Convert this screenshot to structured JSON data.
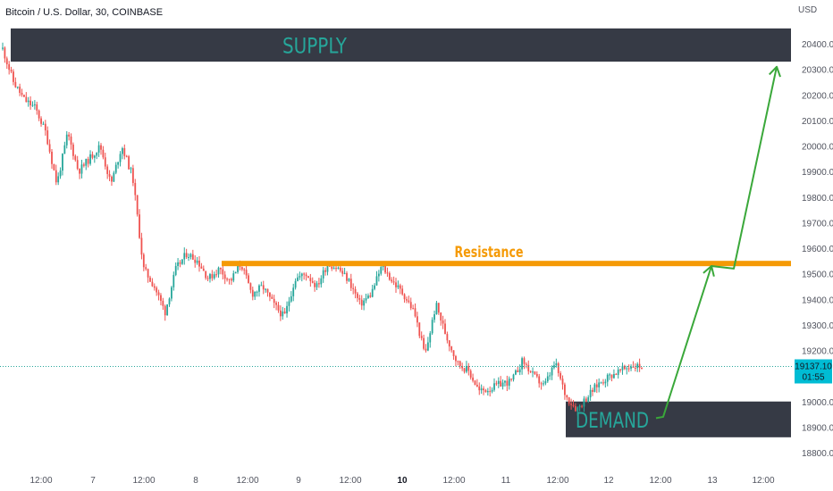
{
  "header": {
    "symbol": "Bitcoin / U.S. Dollar, 30, COINBASE",
    "currency": "USD"
  },
  "colors": {
    "up": "#26a69a",
    "down": "#ef5350",
    "zone": "#363a45",
    "zone_text": "#26a69a",
    "resistance": "#f59a06",
    "arrow": "#3aa83a",
    "price_tag": "#00bcd4"
  },
  "chart_data": {
    "type": "candlestick",
    "title": "Bitcoin / U.S. Dollar, 30, COINBASE",
    "y_axis": {
      "unit": "USD",
      "ylim": [
        18750,
        20500
      ],
      "ticks": [
        "20400.00",
        "20300.00",
        "20200.00",
        "20100.00",
        "20000.00",
        "19900.00",
        "19800.00",
        "19700.00",
        "19600.00",
        "19500.00",
        "19400.00",
        "19300.00",
        "19200.00",
        "19000.00",
        "18900.00",
        "18800.00"
      ]
    },
    "x_axis": {
      "ticks": [
        {
          "label": "12:00",
          "bold": false
        },
        {
          "label": "7",
          "bold": false
        },
        {
          "label": "12:00",
          "bold": false
        },
        {
          "label": "8",
          "bold": false
        },
        {
          "label": "12:00",
          "bold": false
        },
        {
          "label": "9",
          "bold": false
        },
        {
          "label": "12:00",
          "bold": false
        },
        {
          "label": "10",
          "bold": true
        },
        {
          "label": "12:00",
          "bold": false
        },
        {
          "label": "11",
          "bold": false
        },
        {
          "label": "12:00",
          "bold": false
        },
        {
          "label": "12",
          "bold": false
        },
        {
          "label": "12:00",
          "bold": false
        },
        {
          "label": "13",
          "bold": false
        },
        {
          "label": "12:00",
          "bold": false
        }
      ]
    },
    "price_path": [
      20380,
      20250,
      20180,
      20150,
      20050,
      19850,
      20050,
      19900,
      19950,
      20000,
      19850,
      20000,
      19880,
      19520,
      19450,
      19350,
      19520,
      19580,
      19550,
      19480,
      19520,
      19470,
      19540,
      19420,
      19450,
      19380,
      19330,
      19480,
      19500,
      19450,
      19540,
      19520,
      19470,
      19380,
      19420,
      19530,
      19470,
      19420,
      19350,
      19180,
      19380,
      19250,
      19150,
      19120,
      19040,
      19050,
      19070,
      19080,
      19160,
      19100,
      19060,
      19150,
      19020,
      18970,
      19020,
      19070,
      19100,
      19120,
      19140,
      19137
    ],
    "last_price": "19137.10",
    "countdown": "01:55",
    "zones": [
      {
        "label": "SUPPLY",
        "from": 20330,
        "to": 20460
      },
      {
        "label": "DEMAND",
        "from": 18860,
        "to": 19000
      }
    ],
    "levels": [
      {
        "label": "Resistance",
        "value": 19540
      }
    ],
    "projection": {
      "points": [
        {
          "x": "11 ~20:00",
          "y": 18940
        },
        {
          "x": "12 ~20:00",
          "y": 19530
        },
        {
          "x": "13 ~06:00",
          "y": 19520
        },
        {
          "x": "13 ~20:00",
          "y": 20310
        }
      ]
    }
  }
}
